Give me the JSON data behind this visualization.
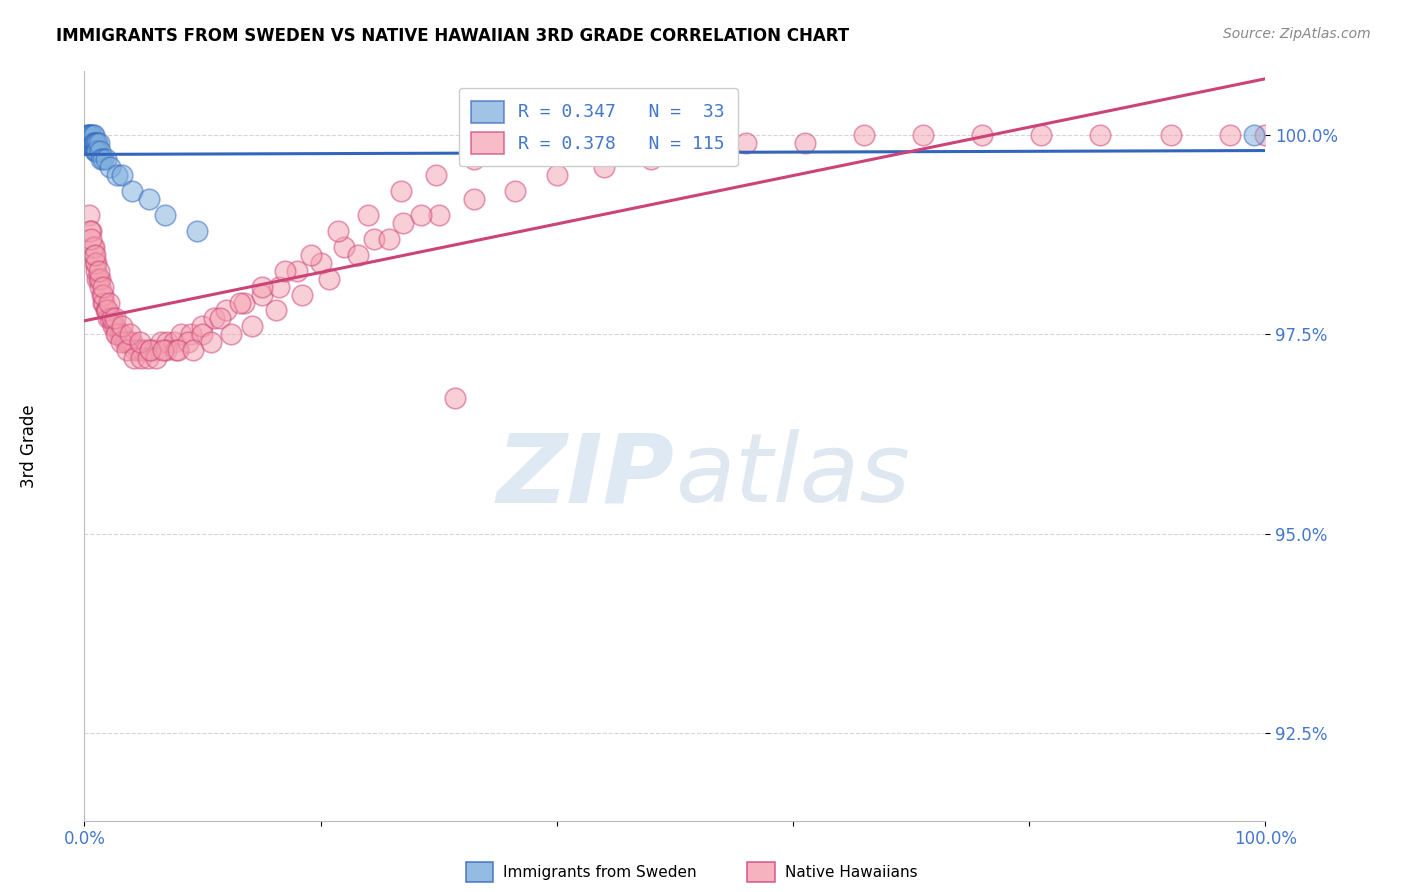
{
  "title": "IMMIGRANTS FROM SWEDEN VS NATIVE HAWAIIAN 3RD GRADE CORRELATION CHART",
  "source_text": "Source: ZipAtlas.com",
  "ylabel": "3rd Grade",
  "color_sweden": "#7AACDC",
  "color_hawaii": "#F4A0B0",
  "color_line_sweden": "#3366BB",
  "color_line_hawaii": "#CC4477",
  "color_axis_labels": "#4477CC",
  "background_color": "#FFFFFF",
  "xmin": 0.0,
  "xmax": 1.0,
  "ymin": 0.914,
  "ymax": 1.008,
  "yticks": [
    0.925,
    0.95,
    0.975,
    1.0
  ],
  "ytick_labels": [
    "92.5%",
    "95.0%",
    "97.5%",
    "100.0%"
  ],
  "legend_line1": "R = 0.347   N =  33",
  "legend_line2": "R = 0.378   N = 115",
  "sweden_x": [
    0.002,
    0.003,
    0.004,
    0.004,
    0.005,
    0.005,
    0.006,
    0.006,
    0.007,
    0.007,
    0.007,
    0.008,
    0.008,
    0.008,
    0.009,
    0.009,
    0.01,
    0.01,
    0.011,
    0.011,
    0.012,
    0.013,
    0.014,
    0.016,
    0.018,
    0.022,
    0.028,
    0.032,
    0.04,
    0.055,
    0.068,
    0.095,
    0.99
  ],
  "sweden_y": [
    1.0,
    1.0,
    0.999,
    1.0,
    0.999,
    1.0,
    0.999,
    1.0,
    0.999,
    0.999,
    1.0,
    0.999,
    1.0,
    0.999,
    0.999,
    0.998,
    0.999,
    0.998,
    0.999,
    0.998,
    0.999,
    0.998,
    0.997,
    0.997,
    0.997,
    0.996,
    0.995,
    0.995,
    0.993,
    0.992,
    0.99,
    0.988,
    1.0
  ],
  "hawaii_x": [
    0.004,
    0.006,
    0.007,
    0.008,
    0.009,
    0.01,
    0.011,
    0.012,
    0.013,
    0.015,
    0.016,
    0.017,
    0.018,
    0.019,
    0.02,
    0.022,
    0.024,
    0.026,
    0.028,
    0.03,
    0.032,
    0.034,
    0.036,
    0.038,
    0.04,
    0.043,
    0.046,
    0.049,
    0.052,
    0.056,
    0.06,
    0.065,
    0.07,
    0.076,
    0.082,
    0.09,
    0.1,
    0.11,
    0.12,
    0.135,
    0.15,
    0.165,
    0.18,
    0.2,
    0.22,
    0.245,
    0.27,
    0.3,
    0.33,
    0.365,
    0.4,
    0.44,
    0.48,
    0.52,
    0.56,
    0.61,
    0.66,
    0.71,
    0.76,
    0.81,
    0.86,
    0.92,
    0.97,
    1.0,
    0.005,
    0.008,
    0.01,
    0.013,
    0.016,
    0.019,
    0.023,
    0.027,
    0.031,
    0.036,
    0.042,
    0.048,
    0.054,
    0.061,
    0.069,
    0.078,
    0.088,
    0.1,
    0.115,
    0.132,
    0.15,
    0.17,
    0.192,
    0.215,
    0.24,
    0.268,
    0.298,
    0.33,
    0.006,
    0.009,
    0.012,
    0.016,
    0.021,
    0.026,
    0.032,
    0.039,
    0.047,
    0.056,
    0.067,
    0.079,
    0.092,
    0.107,
    0.124,
    0.142,
    0.162,
    0.184,
    0.207,
    0.232,
    0.258,
    0.285,
    0.314
  ],
  "hawaii_y": [
    0.99,
    0.988,
    0.986,
    0.985,
    0.984,
    0.983,
    0.982,
    0.982,
    0.981,
    0.98,
    0.979,
    0.979,
    0.978,
    0.978,
    0.977,
    0.977,
    0.976,
    0.976,
    0.975,
    0.975,
    0.975,
    0.974,
    0.974,
    0.974,
    0.974,
    0.973,
    0.973,
    0.973,
    0.973,
    0.973,
    0.973,
    0.974,
    0.974,
    0.974,
    0.975,
    0.975,
    0.976,
    0.977,
    0.978,
    0.979,
    0.98,
    0.981,
    0.983,
    0.984,
    0.986,
    0.987,
    0.989,
    0.99,
    0.992,
    0.993,
    0.995,
    0.996,
    0.997,
    0.998,
    0.999,
    0.999,
    1.0,
    1.0,
    1.0,
    1.0,
    1.0,
    1.0,
    1.0,
    1.0,
    0.988,
    0.986,
    0.984,
    0.982,
    0.98,
    0.978,
    0.977,
    0.975,
    0.974,
    0.973,
    0.972,
    0.972,
    0.972,
    0.972,
    0.973,
    0.973,
    0.974,
    0.975,
    0.977,
    0.979,
    0.981,
    0.983,
    0.985,
    0.988,
    0.99,
    0.993,
    0.995,
    0.997,
    0.987,
    0.985,
    0.983,
    0.981,
    0.979,
    0.977,
    0.976,
    0.975,
    0.974,
    0.973,
    0.973,
    0.973,
    0.973,
    0.974,
    0.975,
    0.976,
    0.978,
    0.98,
    0.982,
    0.985,
    0.987,
    0.99,
    0.967
  ]
}
